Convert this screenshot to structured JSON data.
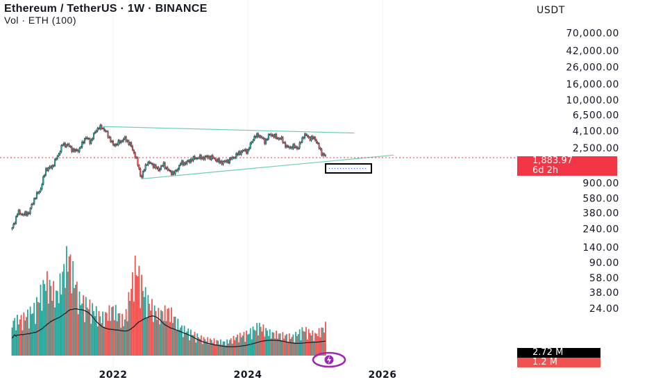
{
  "header": {
    "title": "Ethereum / TetherUS · 1W · BINANCE",
    "volume_label": "Vol · ETH (100)"
  },
  "price_axis": {
    "currency": "USDT",
    "ticks": [
      "70,000.00",
      "42,000.00",
      "26,000.00",
      "16,000.00",
      "10,000.00",
      "6,500.00",
      "4,100.00",
      "2,500.00",
      "900.00",
      "580.00",
      "380.00",
      "240.00",
      "140.00",
      "90.00",
      "58.00",
      "38.00",
      "24.00"
    ]
  },
  "badges": {
    "last_price": "1,883.97",
    "countdown": "6d 2h",
    "volume_ma": "2.72 M",
    "volume": "1.2 M"
  },
  "colors": {
    "up": "#26a69a",
    "down": "#ef5350",
    "trendline": "#6ccfae",
    "price_line": "#f23645",
    "volume_ma": "#131722",
    "gridline": "#f0f3fa",
    "brand_icon": "#9c27b0"
  },
  "chart_data": {
    "type": "candlestick",
    "title": "Ethereum / TetherUS · 1W · BINANCE",
    "x_axis": {
      "ticks": [
        "2022",
        "2024",
        "2026"
      ],
      "range": [
        "2020-07",
        "2027-03"
      ]
    },
    "y_axis": {
      "scale": "log",
      "range": [
        14,
        90000
      ],
      "unit": "USDT"
    },
    "last_price": 1883.97,
    "price_path": [
      {
        "date": "2020-07",
        "price": 240
      },
      {
        "date": "2020-08",
        "price": 390
      },
      {
        "date": "2020-09",
        "price": 360
      },
      {
        "date": "2020-10",
        "price": 385
      },
      {
        "date": "2020-11",
        "price": 590
      },
      {
        "date": "2020-12",
        "price": 740
      },
      {
        "date": "2021-01",
        "price": 1350
      },
      {
        "date": "2021-02",
        "price": 1420
      },
      {
        "date": "2021-03",
        "price": 1900
      },
      {
        "date": "2021-04",
        "price": 2780
      },
      {
        "date": "2021-05",
        "price": 2700
      },
      {
        "date": "2021-06",
        "price": 2270
      },
      {
        "date": "2021-07",
        "price": 2400
      },
      {
        "date": "2021-08",
        "price": 3400
      },
      {
        "date": "2021-09",
        "price": 3000
      },
      {
        "date": "2021-10",
        "price": 4300
      },
      {
        "date": "2021-11",
        "price": 4600
      },
      {
        "date": "2021-12",
        "price": 3700
      },
      {
        "date": "2022-01",
        "price": 2700
      },
      {
        "date": "2022-02",
        "price": 2900
      },
      {
        "date": "2022-03",
        "price": 3300
      },
      {
        "date": "2022-04",
        "price": 2800
      },
      {
        "date": "2022-05",
        "price": 1950
      },
      {
        "date": "2022-06",
        "price": 1050
      },
      {
        "date": "2022-07",
        "price": 1650
      },
      {
        "date": "2022-08",
        "price": 1550
      },
      {
        "date": "2022-09",
        "price": 1330
      },
      {
        "date": "2022-10",
        "price": 1550
      },
      {
        "date": "2022-11",
        "price": 1250
      },
      {
        "date": "2022-12",
        "price": 1200
      },
      {
        "date": "2023-01",
        "price": 1600
      },
      {
        "date": "2023-02",
        "price": 1620
      },
      {
        "date": "2023-03",
        "price": 1800
      },
      {
        "date": "2023-04",
        "price": 1900
      },
      {
        "date": "2023-05",
        "price": 1880
      },
      {
        "date": "2023-06",
        "price": 1930
      },
      {
        "date": "2023-07",
        "price": 1850
      },
      {
        "date": "2023-08",
        "price": 1650
      },
      {
        "date": "2023-09",
        "price": 1670
      },
      {
        "date": "2023-10",
        "price": 1810
      },
      {
        "date": "2023-11",
        "price": 2050
      },
      {
        "date": "2023-12",
        "price": 2300
      },
      {
        "date": "2024-01",
        "price": 2300
      },
      {
        "date": "2024-02",
        "price": 3380
      },
      {
        "date": "2024-03",
        "price": 3650
      },
      {
        "date": "2024-04",
        "price": 3000
      },
      {
        "date": "2024-05",
        "price": 3760
      },
      {
        "date": "2024-06",
        "price": 3400
      },
      {
        "date": "2024-07",
        "price": 3230
      },
      {
        "date": "2024-08",
        "price": 2510
      },
      {
        "date": "2024-09",
        "price": 2600
      },
      {
        "date": "2024-10",
        "price": 2520
      },
      {
        "date": "2024-11",
        "price": 3700
      },
      {
        "date": "2024-12",
        "price": 3330
      },
      {
        "date": "2025-01",
        "price": 3280
      },
      {
        "date": "2025-02",
        "price": 2230
      },
      {
        "date": "2025-03",
        "price": 1884
      }
    ],
    "volume_path": [
      {
        "date": "2020-07",
        "volume": 18
      },
      {
        "date": "2020-09",
        "volume": 20
      },
      {
        "date": "2020-11",
        "volume": 25
      },
      {
        "date": "2021-01",
        "volume": 40
      },
      {
        "date": "2021-03",
        "volume": 32
      },
      {
        "date": "2021-05",
        "volume": 54
      },
      {
        "date": "2021-07",
        "volume": 30
      },
      {
        "date": "2021-09",
        "volume": 26
      },
      {
        "date": "2021-11",
        "volume": 20
      },
      {
        "date": "2022-01",
        "volume": 25
      },
      {
        "date": "2022-03",
        "volume": 18
      },
      {
        "date": "2022-05",
        "volume": 48
      },
      {
        "date": "2022-07",
        "volume": 30
      },
      {
        "date": "2022-09",
        "volume": 22
      },
      {
        "date": "2022-11",
        "volume": 24
      },
      {
        "date": "2023-01",
        "volume": 15
      },
      {
        "date": "2023-03",
        "volume": 12
      },
      {
        "date": "2023-05",
        "volume": 9
      },
      {
        "date": "2023-07",
        "volume": 8
      },
      {
        "date": "2023-09",
        "volume": 7
      },
      {
        "date": "2023-11",
        "volume": 10
      },
      {
        "date": "2024-01",
        "volume": 12
      },
      {
        "date": "2024-03",
        "volume": 16
      },
      {
        "date": "2024-05",
        "volume": 12
      },
      {
        "date": "2024-07",
        "volume": 11
      },
      {
        "date": "2024-09",
        "volume": 10
      },
      {
        "date": "2024-11",
        "volume": 14
      },
      {
        "date": "2025-01",
        "volume": 11
      },
      {
        "date": "2025-03",
        "volume": 16
      }
    ],
    "volume_ma": 2.72,
    "trendlines": [
      {
        "name": "upper",
        "from": {
          "date": "2021-11",
          "price": 4650
        },
        "to": {
          "date": "2025-08",
          "price": 3850
        }
      },
      {
        "name": "lower",
        "from": {
          "date": "2022-06",
          "price": 1020
        },
        "to": {
          "date": "2026-03",
          "price": 2030
        }
      }
    ]
  }
}
